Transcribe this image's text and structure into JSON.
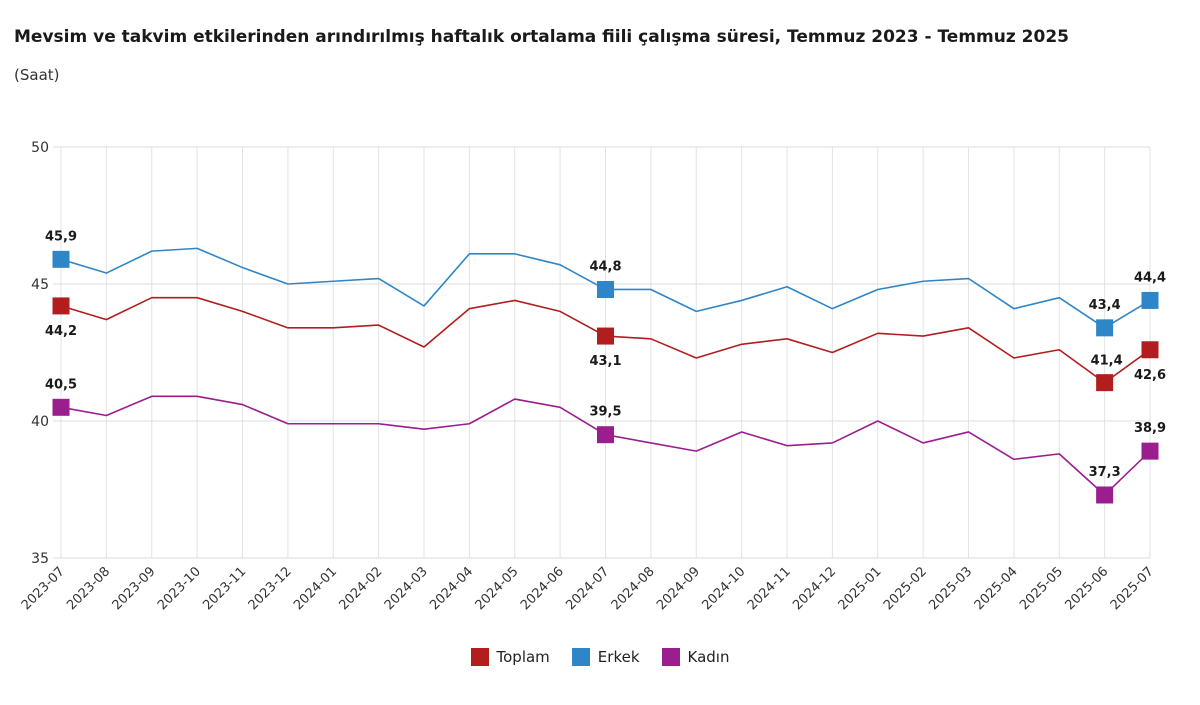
{
  "title": "Mevsim ve takvim etkilerinden arındırılmış haftalık ortalama fiili çalışma süresi, Temmuz 2023 - Temmuz 2025",
  "subtitle": "(Saat)",
  "chart_data": {
    "type": "line",
    "categories": [
      "2023-07",
      "2023-08",
      "2023-09",
      "2023-10",
      "2023-11",
      "2023-12",
      "2024-01",
      "2024-02",
      "2024-03",
      "2024-04",
      "2024-05",
      "2024-06",
      "2024-07",
      "2024-08",
      "2024-09",
      "2024-10",
      "2024-11",
      "2024-12",
      "2025-01",
      "2025-02",
      "2025-03",
      "2025-04",
      "2025-05",
      "2025-06",
      "2025-07"
    ],
    "ylim": [
      35,
      50
    ],
    "yticks": [
      35,
      40,
      45,
      50
    ],
    "grid": true,
    "legend_position": "bottom",
    "series": [
      {
        "name": "Toplam",
        "color": "#b21e1e",
        "values": [
          44.2,
          43.7,
          44.5,
          44.5,
          44.0,
          43.4,
          43.4,
          43.5,
          42.7,
          44.1,
          44.4,
          44.0,
          43.1,
          43.0,
          42.3,
          42.8,
          43.0,
          42.5,
          43.2,
          43.1,
          43.4,
          42.3,
          42.6,
          41.4,
          42.6
        ]
      },
      {
        "name": "Erkek",
        "color": "#2e86c8",
        "values": [
          45.9,
          45.4,
          46.2,
          46.3,
          45.6,
          45.0,
          45.1,
          45.2,
          44.2,
          46.1,
          46.1,
          45.7,
          44.8,
          44.8,
          44.0,
          44.4,
          44.9,
          44.1,
          44.8,
          45.1,
          45.2,
          44.1,
          44.5,
          43.4,
          44.4
        ]
      },
      {
        "name": "Kadın",
        "color": "#9b1e8f",
        "values": [
          40.5,
          40.2,
          40.9,
          40.9,
          40.6,
          39.9,
          39.9,
          39.9,
          39.7,
          39.9,
          40.8,
          40.5,
          39.5,
          39.2,
          38.9,
          39.6,
          39.1,
          39.2,
          40.0,
          39.2,
          39.6,
          38.6,
          38.8,
          37.3,
          38.9
        ]
      }
    ],
    "markers": [
      {
        "series": 0,
        "index": 0,
        "label": "44,2",
        "pos": "below"
      },
      {
        "series": 0,
        "index": 12,
        "label": "43,1",
        "pos": "below"
      },
      {
        "series": 0,
        "index": 23,
        "label": "41,4",
        "pos": "right"
      },
      {
        "series": 0,
        "index": 24,
        "label": "42,6",
        "pos": "below"
      },
      {
        "series": 1,
        "index": 0,
        "label": "45,9",
        "pos": "above"
      },
      {
        "series": 1,
        "index": 12,
        "label": "44,8",
        "pos": "above"
      },
      {
        "series": 1,
        "index": 23,
        "label": "43,4",
        "pos": "above"
      },
      {
        "series": 1,
        "index": 24,
        "label": "44,4",
        "pos": "above"
      },
      {
        "series": 2,
        "index": 0,
        "label": "40,5",
        "pos": "above"
      },
      {
        "series": 2,
        "index": 12,
        "label": "39,5",
        "pos": "above"
      },
      {
        "series": 2,
        "index": 23,
        "label": "37,3",
        "pos": "above"
      },
      {
        "series": 2,
        "index": 24,
        "label": "38,9",
        "pos": "above"
      }
    ]
  }
}
